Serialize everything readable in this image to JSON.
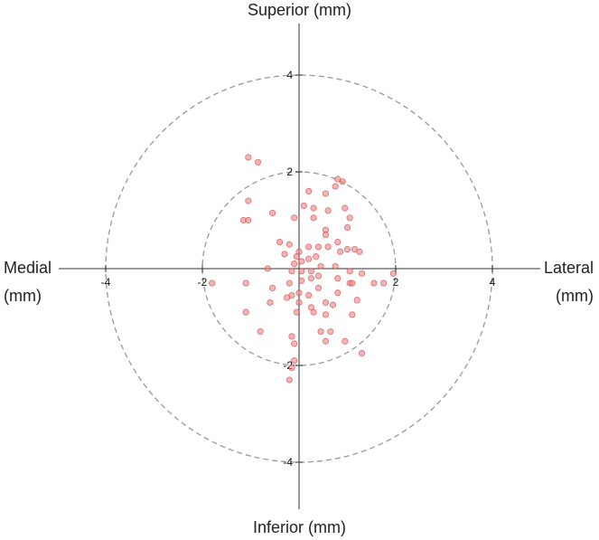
{
  "chart_data": {
    "type": "scatter",
    "labels": {
      "top": "Superior (mm)",
      "bottom": "Inferior (mm)",
      "left_line1": "Medial",
      "left_line2": "(mm)",
      "right_line1": "Lateral",
      "right_line2": "(mm)"
    },
    "xlim": [
      -5,
      5
    ],
    "ylim": [
      -5,
      5
    ],
    "x_ticks": [
      -4,
      -2,
      2,
      4
    ],
    "y_ticks": [
      -4,
      -2,
      2,
      4
    ],
    "reference_circles_radius": [
      2,
      4
    ],
    "grid": false,
    "colors": {
      "point_fill": "#f08080",
      "point_stroke": "#c94a4a",
      "axis": "#333333",
      "circle": "#999999"
    },
    "points": [
      {
        "x": -1.05,
        "y": 2.3
      },
      {
        "x": -0.85,
        "y": 2.2
      },
      {
        "x": -0.55,
        "y": 1.15
      },
      {
        "x": 0.1,
        "y": 1.3
      },
      {
        "x": -1.05,
        "y": 1.4
      },
      {
        "x": -1.15,
        "y": 1.0
      },
      {
        "x": -1.05,
        "y": 1.0
      },
      {
        "x": 0.55,
        "y": 1.55
      },
      {
        "x": 0.75,
        "y": 1.7
      },
      {
        "x": 0.8,
        "y": 1.85
      },
      {
        "x": 0.9,
        "y": 1.8
      },
      {
        "x": 0.2,
        "y": 1.6
      },
      {
        "x": 0.3,
        "y": 1.25
      },
      {
        "x": 0.6,
        "y": 1.2
      },
      {
        "x": 0.95,
        "y": 1.25
      },
      {
        "x": -0.1,
        "y": 1.05
      },
      {
        "x": 0.3,
        "y": 1.05
      },
      {
        "x": 1.05,
        "y": 1.05
      },
      {
        "x": 1.0,
        "y": 0.85
      },
      {
        "x": 0.55,
        "y": 0.8
      },
      {
        "x": 0.8,
        "y": 0.55
      },
      {
        "x": -0.2,
        "y": 0.5
      },
      {
        "x": -0.4,
        "y": 0.55
      },
      {
        "x": 0.0,
        "y": 0.35
      },
      {
        "x": 0.2,
        "y": 0.45
      },
      {
        "x": 0.4,
        "y": 0.45
      },
      {
        "x": 0.6,
        "y": 0.45
      },
      {
        "x": 0.55,
        "y": 0.7
      },
      {
        "x": 0.85,
        "y": 0.35
      },
      {
        "x": 1.0,
        "y": 0.4
      },
      {
        "x": 1.15,
        "y": 0.4
      },
      {
        "x": 1.25,
        "y": 0.35
      },
      {
        "x": -0.3,
        "y": 0.3
      },
      {
        "x": 0.05,
        "y": 0.15
      },
      {
        "x": -0.1,
        "y": 0.1
      },
      {
        "x": 0.2,
        "y": 0.2
      },
      {
        "x": 0.35,
        "y": 0.25
      },
      {
        "x": -0.05,
        "y": 0.25
      },
      {
        "x": 0.45,
        "y": 0.05
      },
      {
        "x": -0.65,
        "y": 0.0
      },
      {
        "x": -0.15,
        "y": -0.05
      },
      {
        "x": 0.05,
        "y": -0.05
      },
      {
        "x": 0.25,
        "y": -0.05
      },
      {
        "x": 0.4,
        "y": -0.15
      },
      {
        "x": 0.75,
        "y": 0.05
      },
      {
        "x": 1.05,
        "y": -0.05
      },
      {
        "x": 1.3,
        "y": -0.1
      },
      {
        "x": 1.75,
        "y": -0.3
      },
      {
        "x": 1.05,
        "y": -0.3
      },
      {
        "x": 1.1,
        "y": -0.3
      },
      {
        "x": 1.55,
        "y": -0.3
      },
      {
        "x": 0.05,
        "y": -0.25
      },
      {
        "x": 0.25,
        "y": -0.2
      },
      {
        "x": -0.2,
        "y": -0.3
      },
      {
        "x": 0.0,
        "y": -0.5
      },
      {
        "x": 0.2,
        "y": -0.55
      },
      {
        "x": -0.15,
        "y": -0.55
      },
      {
        "x": 0.0,
        "y": -0.7
      },
      {
        "x": 0.4,
        "y": -0.4
      },
      {
        "x": 0.8,
        "y": -0.2
      },
      {
        "x": 0.8,
        "y": -0.5
      },
      {
        "x": 1.2,
        "y": -0.65
      },
      {
        "x": 1.1,
        "y": -0.95
      },
      {
        "x": 0.55,
        "y": -0.7
      },
      {
        "x": -0.55,
        "y": -0.4
      },
      {
        "x": -1.1,
        "y": -0.3
      },
      {
        "x": -0.25,
        "y": -0.6
      },
      {
        "x": -0.6,
        "y": -0.7
      },
      {
        "x": 0.25,
        "y": -0.8
      },
      {
        "x": 0.7,
        "y": -0.75
      },
      {
        "x": -1.1,
        "y": -0.9
      },
      {
        "x": -0.05,
        "y": -0.9
      },
      {
        "x": 0.3,
        "y": -0.9
      },
      {
        "x": 0.55,
        "y": -0.95
      },
      {
        "x": -0.8,
        "y": -1.3
      },
      {
        "x": -0.15,
        "y": -1.4
      },
      {
        "x": 0.45,
        "y": -1.3
      },
      {
        "x": 0.65,
        "y": -1.3
      },
      {
        "x": 0.55,
        "y": -1.5
      },
      {
        "x": -0.1,
        "y": -1.55
      },
      {
        "x": 0.95,
        "y": -1.5
      },
      {
        "x": 1.3,
        "y": -1.75
      },
      {
        "x": -0.1,
        "y": -1.9
      },
      {
        "x": -0.15,
        "y": -2.05
      },
      {
        "x": -0.2,
        "y": -2.3
      },
      {
        "x": -1.8,
        "y": -0.3
      },
      {
        "x": 1.95,
        "y": -0.1
      }
    ]
  }
}
